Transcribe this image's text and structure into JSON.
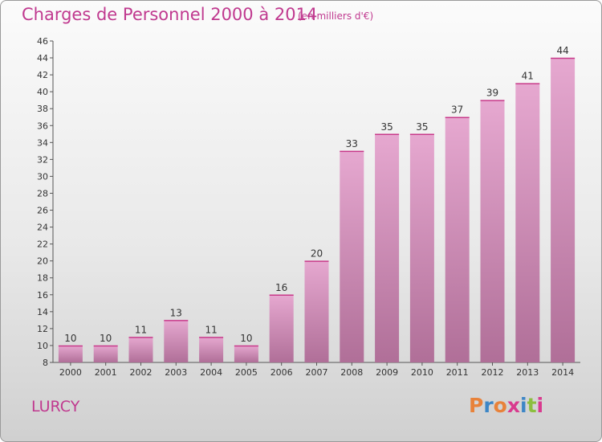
{
  "header": {
    "title": "Charges de Personnel 2000 à 2014",
    "unit": "(en milliers d'€)"
  },
  "footer": {
    "commune": "LURCY",
    "brand_letters": [
      "P",
      "r",
      "o",
      "x",
      "i",
      "t",
      "i"
    ],
    "brand_colors": [
      "#e8823a",
      "#3d86c6",
      "#e8823a",
      "#d93a8e",
      "#3d86c6",
      "#8cbf3f",
      "#d93a8e"
    ]
  },
  "colors": {
    "accent": "#c0398f",
    "bar_top": "#e6a8d0",
    "bar_bottom": "#b06f98",
    "bar_highlight": "#c83a8a"
  },
  "chart_data": {
    "type": "bar",
    "title": "Charges de Personnel 2000 à 2014",
    "subtitle": "(en milliers d'€)",
    "categories": [
      "2000",
      "2001",
      "2002",
      "2003",
      "2004",
      "2005",
      "2006",
      "2007",
      "2008",
      "2009",
      "2010",
      "2011",
      "2012",
      "2013",
      "2014"
    ],
    "values": [
      10,
      10,
      11,
      13,
      11,
      10,
      16,
      20,
      33,
      35,
      35,
      37,
      39,
      41,
      44
    ],
    "ylim": [
      8,
      46
    ],
    "yticks": [
      8,
      10,
      12,
      14,
      16,
      18,
      20,
      22,
      24,
      26,
      28,
      30,
      32,
      34,
      36,
      38,
      40,
      42,
      44,
      46
    ],
    "grid": false,
    "xlabel": "",
    "ylabel": ""
  }
}
